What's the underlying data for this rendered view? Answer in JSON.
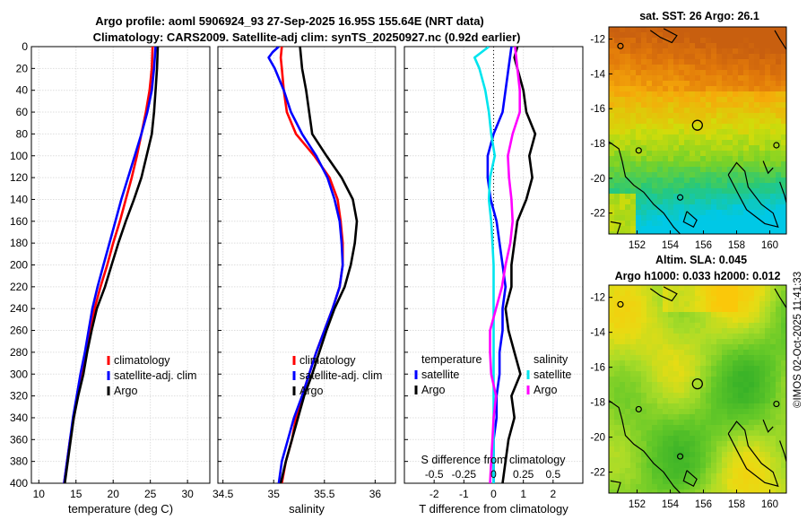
{
  "header": {
    "title_line1": "Argo profile: aoml 5906924_93 27-Sep-2025 16.95S 155.64E (NRT data)",
    "title_line2": "Climatology: CARS2009. Satellite-adj clim: synTS_20250927.nc (0.92d earlier)"
  },
  "credit": "©IMOS 02-Oct-2025 11:41:33",
  "depth_ticks": [
    0,
    20,
    40,
    60,
    80,
    100,
    120,
    140,
    160,
    180,
    200,
    220,
    240,
    260,
    280,
    300,
    320,
    340,
    360,
    380,
    400
  ],
  "colors": {
    "climatology": "#ff0000",
    "satellite": "#0000ff",
    "argo": "#000000",
    "sal_satellite": "#00e5ee",
    "sal_argo": "#ff00ff"
  },
  "chart_data": [
    {
      "type": "line",
      "id": "temperature",
      "xlabel": "temperature (deg C)",
      "ylabel": "depth",
      "xlim": [
        9,
        33
      ],
      "ylim": [
        400,
        0
      ],
      "xticks": [
        10,
        15,
        20,
        25,
        30
      ],
      "xtick_labels": [
        "10",
        "15",
        "20",
        "25",
        "30"
      ],
      "legend": [
        "climatology",
        "satellite-adj. clim",
        "Argo"
      ],
      "legend_position": "lower-right",
      "series": [
        {
          "name": "climatology",
          "depth": [
            0,
            20,
            40,
            60,
            80,
            100,
            120,
            140,
            160,
            180,
            200,
            220,
            240,
            260,
            280,
            300,
            320,
            340,
            360,
            380,
            400
          ],
          "values": [
            25.3,
            25.2,
            24.9,
            24.4,
            23.8,
            23.2,
            22.5,
            21.7,
            20.9,
            20.0,
            19.2,
            18.3,
            17.5,
            16.9,
            16.3,
            15.7,
            15.2,
            14.7,
            14.2,
            13.8,
            13.4
          ]
        },
        {
          "name": "satellite-adj. clim",
          "depth": [
            0,
            20,
            40,
            60,
            80,
            100,
            120,
            140,
            160,
            180,
            200,
            220,
            240,
            260,
            280,
            300,
            320,
            340,
            360,
            380,
            400
          ],
          "values": [
            25.7,
            25.5,
            25.2,
            24.6,
            23.8,
            22.9,
            22.0,
            21.1,
            20.3,
            19.5,
            18.7,
            17.9,
            17.2,
            16.7,
            16.2,
            15.6,
            15.1,
            14.6,
            14.2,
            13.8,
            13.4
          ]
        },
        {
          "name": "Argo",
          "depth": [
            0,
            20,
            40,
            60,
            80,
            100,
            120,
            140,
            160,
            180,
            200,
            220,
            240,
            260,
            280,
            300,
            320,
            340,
            360,
            380,
            400
          ],
          "values": [
            26.0,
            25.9,
            25.7,
            25.5,
            25.2,
            24.5,
            23.8,
            22.8,
            21.7,
            20.7,
            19.8,
            18.9,
            17.8,
            17.1,
            16.5,
            16.0,
            15.3,
            14.7,
            14.3,
            13.9,
            13.5
          ]
        }
      ]
    },
    {
      "type": "line",
      "id": "salinity",
      "xlabel": "salinity",
      "ylabel": "depth",
      "xlim": [
        34.45,
        36.2
      ],
      "ylim": [
        400,
        0
      ],
      "xticks": [
        34.5,
        35,
        35.5,
        36
      ],
      "xtick_labels": [
        "34.5",
        "35",
        "35.5",
        "36"
      ],
      "legend": [
        "climatology",
        "satellite-adj. clim",
        "Argo"
      ],
      "legend_position": "lower-right",
      "series": [
        {
          "name": "climatology",
          "depth": [
            0,
            10,
            20,
            40,
            60,
            80,
            100,
            120,
            140,
            160,
            180,
            200,
            220,
            240,
            260,
            280,
            300,
            320,
            340,
            360,
            380,
            400
          ],
          "values": [
            35.08,
            35.07,
            35.08,
            35.1,
            35.13,
            35.22,
            35.4,
            35.55,
            35.63,
            35.66,
            35.68,
            35.68,
            35.65,
            35.58,
            35.5,
            35.42,
            35.35,
            35.28,
            35.22,
            35.18,
            35.12,
            35.08
          ]
        },
        {
          "name": "satellite-adj. clim",
          "depth": [
            0,
            5,
            10,
            20,
            40,
            60,
            80,
            100,
            120,
            140,
            160,
            180,
            200,
            220,
            240,
            260,
            280,
            300,
            320,
            340,
            360,
            380,
            400
          ],
          "values": [
            35.05,
            34.99,
            34.95,
            35.01,
            35.1,
            35.17,
            35.28,
            35.42,
            35.53,
            35.6,
            35.65,
            35.67,
            35.68,
            35.65,
            35.58,
            35.5,
            35.42,
            35.35,
            35.28,
            35.2,
            35.14,
            35.08,
            35.05
          ]
        },
        {
          "name": "Argo",
          "depth": [
            0,
            20,
            40,
            60,
            80,
            100,
            120,
            140,
            160,
            180,
            200,
            220,
            240,
            260,
            280,
            300,
            320,
            340,
            360,
            380,
            400
          ],
          "values": [
            35.26,
            35.28,
            35.32,
            35.35,
            35.38,
            35.52,
            35.67,
            35.78,
            35.82,
            35.8,
            35.76,
            35.7,
            35.6,
            35.52,
            35.45,
            35.38,
            35.3,
            35.24,
            35.18,
            35.12,
            35.07
          ]
        }
      ]
    },
    {
      "type": "line",
      "id": "difference",
      "xlabel": "T difference from climatology",
      "top_axis_label": "S difference from climatology",
      "ylabel": "depth",
      "xlim": [
        -3,
        3
      ],
      "ylim": [
        400,
        0
      ],
      "xticks": [
        -2,
        -1,
        0,
        1,
        2
      ],
      "xtick_labels": [
        "-2",
        "-1",
        "0",
        "1",
        "2"
      ],
      "top_ticks": [
        -0.5,
        -0.25,
        0,
        0.25,
        0.5
      ],
      "top_tick_labels": [
        "-0.5",
        "-0.25",
        "0",
        "0.25",
        "0.5"
      ],
      "legend_temperature": {
        "title": "temperature",
        "items": [
          "satellite",
          "Argo"
        ]
      },
      "legend_salinity": {
        "title": "salinity",
        "items": [
          "satellite",
          "Argo"
        ]
      },
      "series": [
        {
          "name": "temperature satellite",
          "depth": [
            0,
            20,
            40,
            60,
            80,
            100,
            120,
            140,
            160,
            180,
            200,
            220,
            240,
            260,
            280,
            300,
            320,
            340,
            360,
            380,
            400
          ],
          "values": [
            0.6,
            0.5,
            0.4,
            0.3,
            0.0,
            -0.2,
            -0.2,
            -0.1,
            0.1,
            0.2,
            0.3,
            0.4,
            0.3,
            0.3,
            0.2,
            0.2,
            0.1,
            0.1,
            0.0,
            0.0,
            0.0
          ]
        },
        {
          "name": "temperature Argo",
          "depth": [
            0,
            10,
            20,
            40,
            60,
            80,
            100,
            120,
            140,
            160,
            180,
            200,
            220,
            240,
            260,
            280,
            300,
            320,
            340,
            360,
            380,
            400
          ],
          "values": [
            0.8,
            0.7,
            0.8,
            1.0,
            1.1,
            1.4,
            1.2,
            1.3,
            1.1,
            0.8,
            0.7,
            0.6,
            0.6,
            0.4,
            0.5,
            0.7,
            0.9,
            0.6,
            0.7,
            0.5,
            0.4,
            0.3
          ]
        },
        {
          "name": "salinity satellite",
          "depth": [
            0,
            5,
            10,
            20,
            40,
            60,
            80,
            100,
            120,
            140,
            160,
            180,
            200,
            220,
            240,
            260,
            280,
            300,
            320,
            340,
            360,
            380,
            400
          ],
          "values": [
            -0.04,
            -0.1,
            -0.16,
            -0.12,
            -0.07,
            -0.04,
            -0.02,
            0.01,
            -0.03,
            -0.04,
            -0.02,
            -0.01,
            0.0,
            0.0,
            0.0,
            0.0,
            0.0,
            0.0,
            0.0,
            0.0,
            0.0,
            0.0,
            0.0
          ]
        },
        {
          "name": "salinity Argo",
          "depth": [
            0,
            20,
            40,
            60,
            80,
            100,
            120,
            140,
            160,
            180,
            200,
            220,
            240,
            260,
            280,
            300,
            320,
            340,
            360,
            380,
            400
          ],
          "values": [
            0.18,
            0.2,
            0.22,
            0.22,
            0.16,
            0.12,
            0.13,
            0.15,
            0.16,
            0.14,
            0.1,
            0.07,
            0.02,
            -0.03,
            -0.03,
            -0.02,
            0.02,
            0.0,
            -0.01,
            -0.02,
            -0.03
          ]
        }
      ]
    },
    {
      "type": "heatmap",
      "id": "sst-map",
      "title": "sat. SST: 26 Argo: 26.1",
      "xlim": [
        150.3,
        161
      ],
      "ylim": [
        -23.2,
        -11.3
      ],
      "xticks": [
        152,
        154,
        156,
        158,
        160
      ],
      "xtick_labels": [
        "152",
        "154",
        "156",
        "158",
        "160"
      ],
      "yticks": [
        -12,
        -14,
        -16,
        -18,
        -20,
        -22
      ],
      "ytick_labels": [
        "-12",
        "-14",
        "-16",
        "-18",
        "-20",
        "-22"
      ],
      "argo_position": {
        "lon": 155.64,
        "lat": -16.95
      }
    },
    {
      "type": "heatmap",
      "id": "sla-map",
      "title_line1": "Altim. SLA: 0.045",
      "title_line2": "Argo h1000: 0.033 h2000: 0.012",
      "xlim": [
        150.3,
        161
      ],
      "ylim": [
        -23.2,
        -11.3
      ],
      "xticks": [
        152,
        154,
        156,
        158,
        160
      ],
      "xtick_labels": [
        "152",
        "154",
        "156",
        "158",
        "160"
      ],
      "yticks": [
        -12,
        -14,
        -16,
        -18,
        -20,
        -22
      ],
      "ytick_labels": [
        "-12",
        "-14",
        "-16",
        "-18",
        "-20",
        "-22"
      ],
      "argo_position": {
        "lon": 155.64,
        "lat": -16.95
      }
    }
  ]
}
